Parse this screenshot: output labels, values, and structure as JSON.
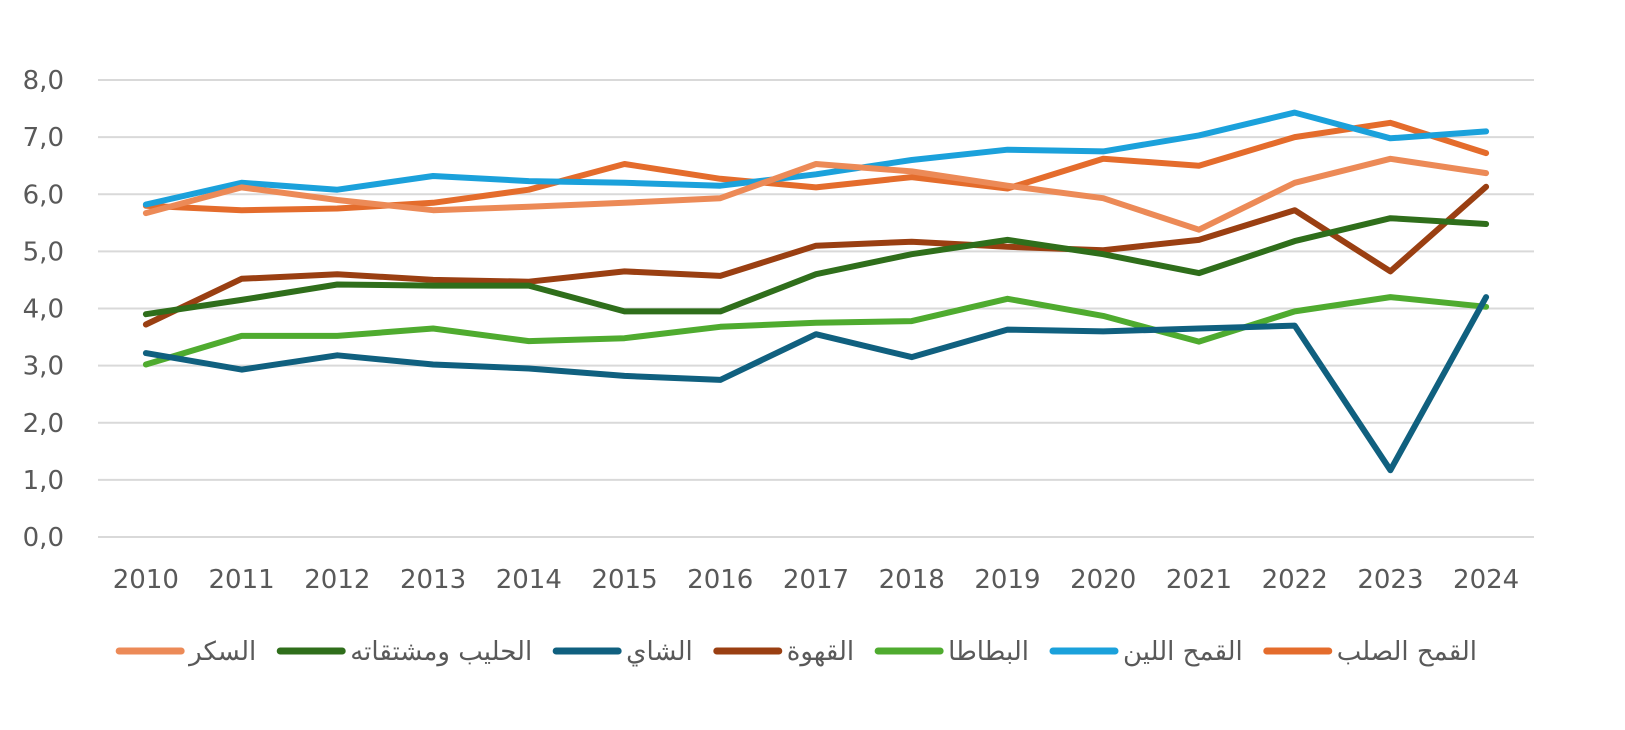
{
  "chart_data": {
    "type": "line",
    "title": "",
    "xlabel": "",
    "ylabel": "",
    "ylim": [
      0,
      8
    ],
    "y_ticks": [
      "0,0",
      "1,0",
      "2,0",
      "3,0",
      "4,0",
      "5,0",
      "6,0",
      "7,0",
      "8,0"
    ],
    "grid": "horizontal",
    "legend_position": "bottom",
    "categories": [
      "2010",
      "2011",
      "2012",
      "2013",
      "2014",
      "2015",
      "2016",
      "2017",
      "2018",
      "2019",
      "2020",
      "2021",
      "2022",
      "2023",
      "2024"
    ],
    "series": [
      {
        "name": "القمح الصلب",
        "color": "#E46C2C",
        "values": [
          5.8,
          5.72,
          5.75,
          5.85,
          6.08,
          6.53,
          6.27,
          6.12,
          6.3,
          6.1,
          6.62,
          6.5,
          7.0,
          7.25,
          6.72
        ]
      },
      {
        "name": "القمح اللين",
        "color": "#1BA1DB",
        "values": [
          5.82,
          6.2,
          6.08,
          6.32,
          6.23,
          6.2,
          6.15,
          6.35,
          6.6,
          6.78,
          6.75,
          7.03,
          7.43,
          6.98,
          7.1
        ]
      },
      {
        "name": "البطاطا",
        "color": "#4FAB2F",
        "values": [
          3.02,
          3.52,
          3.52,
          3.65,
          3.43,
          3.48,
          3.68,
          3.75,
          3.78,
          4.17,
          3.87,
          3.42,
          3.95,
          4.2,
          4.03
        ]
      },
      {
        "name": "القهوة",
        "color": "#9A3F12",
        "values": [
          3.72,
          4.52,
          4.6,
          4.5,
          4.47,
          4.65,
          4.57,
          5.1,
          5.17,
          5.08,
          5.02,
          5.2,
          5.72,
          4.65,
          6.13
        ]
      },
      {
        "name": "الشاي",
        "color": "#10607F",
        "values": [
          3.22,
          2.93,
          3.18,
          3.02,
          2.95,
          2.82,
          2.75,
          3.55,
          3.15,
          3.63,
          3.6,
          3.65,
          3.7,
          1.17,
          4.2
        ]
      },
      {
        "name": "الحليب ومشتقاته",
        "color": "#2F6E1B",
        "values": [
          3.9,
          4.15,
          4.42,
          4.4,
          4.4,
          3.95,
          3.95,
          4.6,
          4.95,
          5.2,
          4.95,
          4.62,
          5.18,
          5.58,
          5.48
        ]
      },
      {
        "name": "السكر",
        "color": "#EC8A57",
        "values": [
          5.67,
          6.12,
          5.9,
          5.72,
          5.78,
          5.85,
          5.93,
          6.53,
          6.4,
          6.15,
          5.93,
          5.38,
          6.2,
          6.62,
          6.37
        ]
      }
    ]
  }
}
